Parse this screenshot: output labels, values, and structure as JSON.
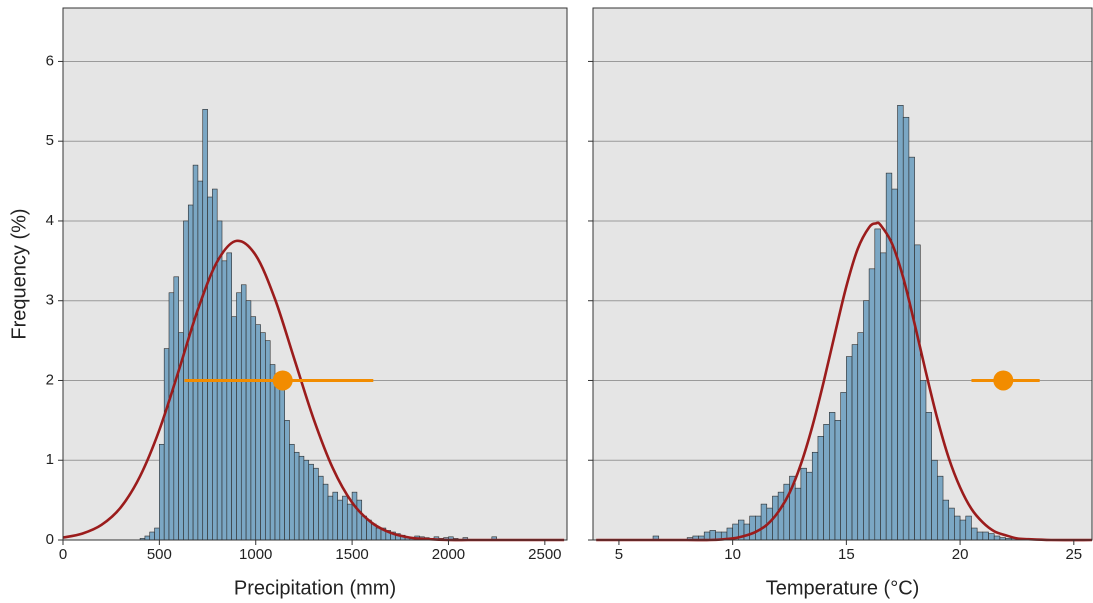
{
  "chart_data": [
    {
      "type": "histogram",
      "xlabel": "Precipitation (mm)",
      "ylabel": "Frequency (%)",
      "bins": [
        400,
        425,
        450,
        475,
        500,
        525,
        550,
        575,
        600,
        625,
        650,
        675,
        700,
        725,
        750,
        775,
        800,
        825,
        850,
        875,
        900,
        925,
        950,
        975,
        1000,
        1025,
        1050,
        1075,
        1100,
        1125,
        1150,
        1175,
        1200,
        1225,
        1250,
        1275,
        1300,
        1325,
        1350,
        1375,
        1400,
        1425,
        1450,
        1475,
        1500,
        1525,
        1550,
        1575,
        1600,
        1625,
        1650,
        1675,
        1700,
        1725,
        1750,
        1775,
        1800,
        1825,
        1850,
        1875,
        1900,
        1925,
        1950,
        1975,
        2000,
        2025,
        2050,
        2075,
        2100,
        2125,
        2150,
        2175,
        2200,
        2225,
        2250
      ],
      "values": [
        0.02,
        0.05,
        0.1,
        0.15,
        1.2,
        2.4,
        3.1,
        3.3,
        2.6,
        4.0,
        4.2,
        4.7,
        4.5,
        5.4,
        4.3,
        4.4,
        4.0,
        3.5,
        3.6,
        2.8,
        3.1,
        3.2,
        3.0,
        2.8,
        2.7,
        2.6,
        2.5,
        2.2,
        2.0,
        1.9,
        1.5,
        1.2,
        1.1,
        1.05,
        1.0,
        0.95,
        0.9,
        0.8,
        0.7,
        0.55,
        0.6,
        0.5,
        0.55,
        0.45,
        0.6,
        0.5,
        0.3,
        0.25,
        0.2,
        0.15,
        0.15,
        0.12,
        0.1,
        0.08,
        0.06,
        0.04,
        0.03,
        0.05,
        0.04,
        0.03,
        0.02,
        0.04,
        0.02,
        0.03,
        0.04,
        0.02,
        0,
        0.03,
        0,
        0,
        0,
        0,
        0,
        0.04
      ],
      "color": "#7ba7c4",
      "curve": {
        "color": "#9b1c1c",
        "x": [
          0,
          100,
          200,
          300,
          400,
          500,
          600,
          700,
          800,
          900,
          1000,
          1100,
          1200,
          1300,
          1400,
          1500,
          1600,
          1700,
          1800,
          1900,
          2000,
          2100,
          2200,
          2300,
          2400,
          2500,
          2600
        ],
        "y": [
          0.03,
          0.08,
          0.19,
          0.41,
          0.8,
          1.38,
          2.12,
          2.89,
          3.49,
          3.75,
          3.57,
          3.02,
          2.27,
          1.52,
          0.9,
          0.47,
          0.22,
          0.09,
          0.03,
          0.01,
          0,
          0,
          0,
          0,
          0,
          0,
          0
        ]
      },
      "interval": {
        "color": "#f28c00",
        "x": 1140,
        "low": 630,
        "high": 1610,
        "y": 2
      },
      "xlim": [
        0,
        2615
      ],
      "ylim": [
        0,
        6.67
      ],
      "xticks": [
        0,
        500,
        1000,
        1500,
        2000,
        2500
      ],
      "yticks": [
        0,
        1,
        2,
        3,
        4,
        5,
        6
      ],
      "ytick_labels": true,
      "grid": true
    },
    {
      "type": "histogram",
      "xlabel": "Temperature (°C)",
      "bins": [
        6.5,
        6.75,
        7,
        7.25,
        7.5,
        7.75,
        8,
        8.25,
        8.5,
        8.75,
        9,
        9.25,
        9.5,
        9.75,
        10,
        10.25,
        10.5,
        10.75,
        11,
        11.25,
        11.5,
        11.75,
        12,
        12.25,
        12.5,
        12.75,
        13,
        13.25,
        13.5,
        13.75,
        14,
        14.25,
        14.5,
        14.75,
        15,
        15.25,
        15.5,
        15.75,
        16,
        16.25,
        16.5,
        16.75,
        17,
        17.25,
        17.5,
        17.75,
        18,
        18.25,
        18.5,
        18.75,
        19,
        19.25,
        19.5,
        19.75,
        20,
        20.25,
        20.5,
        20.75,
        21,
        21.25,
        21.5,
        21.75,
        22,
        22.25,
        22.5
      ],
      "values": [
        0.05,
        0,
        0,
        0,
        0,
        0,
        0.03,
        0.05,
        0.05,
        0.1,
        0.12,
        0.1,
        0.1,
        0.15,
        0.2,
        0.25,
        0.2,
        0.3,
        0.3,
        0.45,
        0.4,
        0.55,
        0.6,
        0.7,
        0.8,
        0.65,
        0.9,
        0.85,
        1.1,
        1.3,
        1.45,
        1.6,
        1.5,
        1.85,
        2.3,
        2.45,
        2.6,
        3.0,
        3.4,
        3.9,
        3.6,
        4.6,
        4.4,
        5.45,
        5.3,
        4.8,
        3.7,
        2.0,
        1.6,
        1.0,
        0.8,
        0.5,
        0.4,
        0.3,
        0.25,
        0.3,
        0.15,
        0.1,
        0.1,
        0.08,
        0.05,
        0.03,
        0.02,
        0.02
      ],
      "color": "#7ba7c4",
      "curve": {
        "color": "#9b1c1c",
        "x": [
          4,
          6,
          8,
          9,
          10,
          10.5,
          11,
          11.5,
          12,
          12.5,
          13,
          13.5,
          14,
          14.5,
          15,
          15.5,
          16,
          16.3,
          16.5,
          17,
          17.5,
          18,
          18.5,
          19,
          19.5,
          20,
          20.5,
          21,
          21.5,
          22,
          22.5,
          23,
          24,
          25.8
        ],
        "y": [
          0,
          0,
          0,
          0,
          0.02,
          0.05,
          0.1,
          0.19,
          0.35,
          0.59,
          0.95,
          1.42,
          1.98,
          2.59,
          3.18,
          3.65,
          3.92,
          3.97,
          3.95,
          3.72,
          3.29,
          2.71,
          2.1,
          1.52,
          1.03,
          0.66,
          0.39,
          0.22,
          0.11,
          0.06,
          0.02,
          0.01,
          0,
          0
        ]
      },
      "interval": {
        "color": "#f28c00",
        "x": 21.9,
        "low": 20.5,
        "high": 23.5,
        "y": 2
      },
      "xlim": [
        3.86,
        25.8
      ],
      "ylim": [
        0,
        6.67
      ],
      "xticks": [
        5,
        10,
        15,
        20,
        25
      ],
      "yticks": [
        0,
        1,
        2,
        3,
        4,
        5,
        6
      ],
      "ytick_labels": false,
      "grid": true
    }
  ]
}
